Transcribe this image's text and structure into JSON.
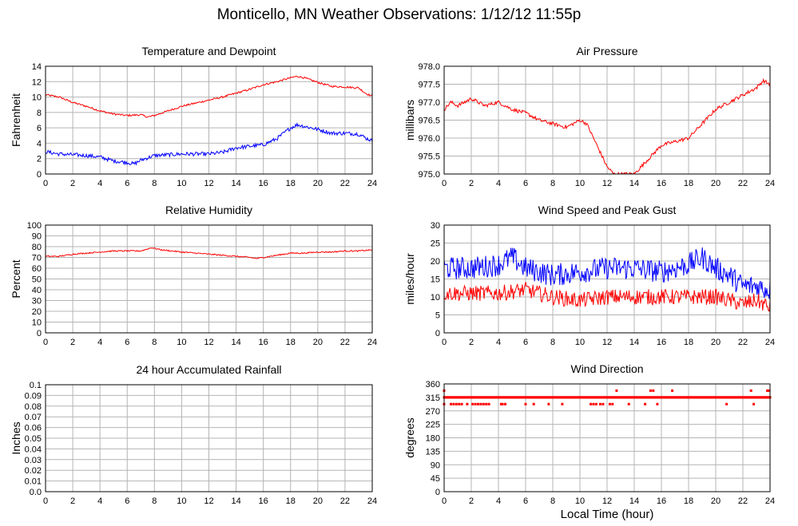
{
  "page": {
    "title": "Monticello, MN Weather Observations: 1/12/12 11:55p",
    "xlabel": "Local Time (hour)"
  },
  "colors": {
    "red": "#ff0000",
    "blue": "#0000ff",
    "grid": "#b4b4b4",
    "frame": "#000000"
  },
  "chart_data": [
    {
      "id": "tempdew",
      "type": "line",
      "title": "Temperature and Dewpoint",
      "xlabel": "",
      "ylabel": "Fahrenheit",
      "xlim": [
        0,
        24
      ],
      "ylim": [
        0,
        14
      ],
      "xticks": [
        0,
        2,
        4,
        6,
        8,
        10,
        12,
        14,
        16,
        18,
        20,
        22,
        24
      ],
      "yticks": [
        0,
        2,
        4,
        6,
        8,
        10,
        12,
        14
      ],
      "grid": true,
      "series": [
        {
          "color": "#ff0000",
          "noise": 0.12,
          "x": [
            0,
            1,
            2,
            3,
            4,
            5,
            6,
            7,
            7.5,
            8,
            9,
            10,
            11,
            12,
            13,
            14,
            15,
            16,
            17,
            18,
            18.5,
            19,
            20,
            21,
            22,
            23,
            23.5,
            24
          ],
          "y": [
            10.3,
            10.0,
            9.3,
            8.8,
            8.2,
            7.8,
            7.6,
            7.7,
            7.4,
            7.6,
            8.2,
            8.8,
            9.2,
            9.6,
            10.0,
            10.5,
            11.0,
            11.6,
            12.0,
            12.5,
            12.7,
            12.5,
            11.9,
            11.4,
            11.3,
            11.2,
            10.5,
            10.1
          ]
        },
        {
          "color": "#0000ff",
          "noise": 0.25,
          "x": [
            0,
            1,
            2,
            3,
            4,
            5,
            6,
            6.5,
            7,
            8,
            9,
            10,
            11,
            12,
            13,
            14,
            15,
            16,
            17,
            18,
            18.5,
            19,
            20,
            21,
            22,
            23,
            23.5,
            24
          ],
          "y": [
            2.9,
            2.6,
            2.5,
            2.4,
            2.2,
            1.7,
            1.5,
            1.3,
            1.8,
            2.4,
            2.5,
            2.6,
            2.6,
            2.6,
            2.8,
            3.4,
            3.6,
            3.8,
            4.6,
            6.0,
            6.4,
            6.2,
            5.8,
            5.3,
            5.3,
            5.2,
            4.7,
            4.3
          ]
        }
      ]
    },
    {
      "id": "pressure",
      "type": "line",
      "title": "Air Pressure",
      "xlabel": "",
      "ylabel": "millibars",
      "xlim": [
        0,
        24
      ],
      "ylim": [
        975.0,
        978.0
      ],
      "xticks": [
        0,
        2,
        4,
        6,
        8,
        10,
        12,
        14,
        16,
        18,
        20,
        22,
        24
      ],
      "yticks": [
        "975.0",
        "975.5",
        "976.0",
        "976.5",
        "977.0",
        "977.5",
        "978.0"
      ],
      "grid": true,
      "series": [
        {
          "color": "#ff0000",
          "noise": 0.05,
          "x": [
            0,
            0.5,
            1,
            2,
            3,
            4,
            5,
            6,
            7,
            8,
            9,
            10,
            10.5,
            11,
            11.5,
            12,
            12.5,
            13,
            14,
            14.5,
            15,
            16,
            17,
            18,
            19,
            20,
            21,
            22,
            23,
            23.5,
            24
          ],
          "y": [
            976.8,
            977.0,
            976.9,
            977.1,
            976.9,
            977.0,
            976.8,
            976.7,
            976.5,
            976.4,
            976.3,
            976.5,
            976.4,
            976.0,
            975.6,
            975.2,
            975.0,
            975.0,
            975.0,
            975.2,
            975.4,
            975.8,
            975.9,
            976.0,
            976.4,
            976.8,
            977.0,
            977.2,
            977.4,
            977.6,
            977.5
          ]
        }
      ]
    },
    {
      "id": "humidity",
      "type": "line",
      "title": "Relative Humidity",
      "xlabel": "",
      "ylabel": "Percent",
      "xlim": [
        0,
        24
      ],
      "ylim": [
        0,
        100
      ],
      "xticks": [
        0,
        2,
        4,
        6,
        8,
        10,
        12,
        14,
        16,
        18,
        20,
        22,
        24
      ],
      "yticks": [
        0,
        10,
        20,
        30,
        40,
        50,
        60,
        70,
        80,
        90,
        100
      ],
      "grid": true,
      "series": [
        {
          "color": "#ff0000",
          "noise": 0.6,
          "x": [
            0,
            1,
            2,
            3,
            4,
            5,
            6,
            7,
            7.8,
            8.5,
            10,
            11,
            12,
            13,
            14,
            15,
            15.5,
            16,
            17,
            18,
            19,
            20,
            21,
            22,
            23,
            24
          ],
          "y": [
            71,
            71,
            73,
            74,
            75,
            76,
            76,
            76,
            79,
            77,
            75,
            74,
            73,
            72,
            71,
            70,
            69,
            70,
            72,
            74,
            74,
            75,
            75,
            76,
            76,
            77
          ]
        }
      ]
    },
    {
      "id": "wind",
      "type": "line",
      "title": "Wind Speed and Peak Gust",
      "xlabel": "",
      "ylabel": "miles/hour",
      "xlim": [
        0,
        24
      ],
      "ylim": [
        0,
        30
      ],
      "xticks": [
        0,
        2,
        4,
        6,
        8,
        10,
        12,
        14,
        16,
        18,
        20,
        22,
        24
      ],
      "yticks": [
        0,
        5,
        10,
        15,
        20,
        25,
        30
      ],
      "grid": true,
      "series": [
        {
          "color": "#0000ff",
          "noise": 3.2,
          "x": [
            0,
            2,
            4,
            5,
            6,
            8,
            10,
            12,
            14,
            16,
            18,
            19,
            20,
            21,
            22,
            23,
            24
          ],
          "y": [
            18,
            18,
            19,
            21,
            18,
            16,
            17,
            18,
            18,
            17,
            19,
            21,
            18,
            16,
            13,
            13,
            12
          ]
        },
        {
          "color": "#ff0000",
          "noise": 2.2,
          "x": [
            0,
            2,
            4,
            6,
            8,
            10,
            12,
            14,
            16,
            18,
            20,
            22,
            23,
            24
          ],
          "y": [
            11,
            11,
            11,
            12,
            10,
            9,
            10,
            10,
            10,
            10,
            10,
            8,
            9,
            7
          ]
        }
      ]
    },
    {
      "id": "rain",
      "type": "line",
      "title": "24 hour Accumulated Rainfall",
      "xlabel": "",
      "ylabel": "Inches",
      "xlim": [
        0,
        24
      ],
      "ylim": [
        0.0,
        0.1
      ],
      "xticks": [
        0,
        2,
        4,
        6,
        8,
        10,
        12,
        14,
        16,
        18,
        20,
        22,
        24
      ],
      "yticks": [
        "0.0",
        "0.01",
        "0.02",
        "0.03",
        "0.04",
        "0.05",
        "0.06",
        "0.07",
        "0.08",
        "0.09",
        "0.1"
      ],
      "grid": true,
      "series": [
        {
          "color": "#ff0000",
          "noise": 0,
          "x": [
            0,
            24
          ],
          "y": [
            0,
            0
          ]
        }
      ]
    },
    {
      "id": "winddir",
      "type": "scatter",
      "title": "Wind Direction",
      "xlabel": "Local Time (hour)",
      "ylabel": "degrees",
      "xlim": [
        0,
        24
      ],
      "ylim": [
        0,
        360
      ],
      "xticks": [
        0,
        2,
        4,
        6,
        8,
        10,
        12,
        14,
        16,
        18,
        20,
        22,
        24
      ],
      "yticks": [
        0,
        45,
        90,
        135,
        180,
        225,
        270,
        315,
        360
      ],
      "grid": true,
      "series": [
        {
          "color": "#ff0000",
          "marker": "square",
          "baseline": 315,
          "x292": [
            0.0,
            0.5,
            0.7,
            0.9,
            1.1,
            1.3,
            1.7,
            2.1,
            2.3,
            2.5,
            2.7,
            2.9,
            3.1,
            3.3,
            4.2,
            4.3,
            4.5,
            6.0,
            6.6,
            7.7,
            8.7,
            10.8,
            11.0,
            11.2,
            11.5,
            11.7,
            12.2,
            12.4,
            13.6,
            14.8,
            15.7,
            20.8,
            22.8
          ],
          "x337": [
            0.0,
            12.7,
            15.2,
            15.4,
            16.8,
            22.6,
            23.8,
            23.9
          ]
        }
      ]
    }
  ]
}
